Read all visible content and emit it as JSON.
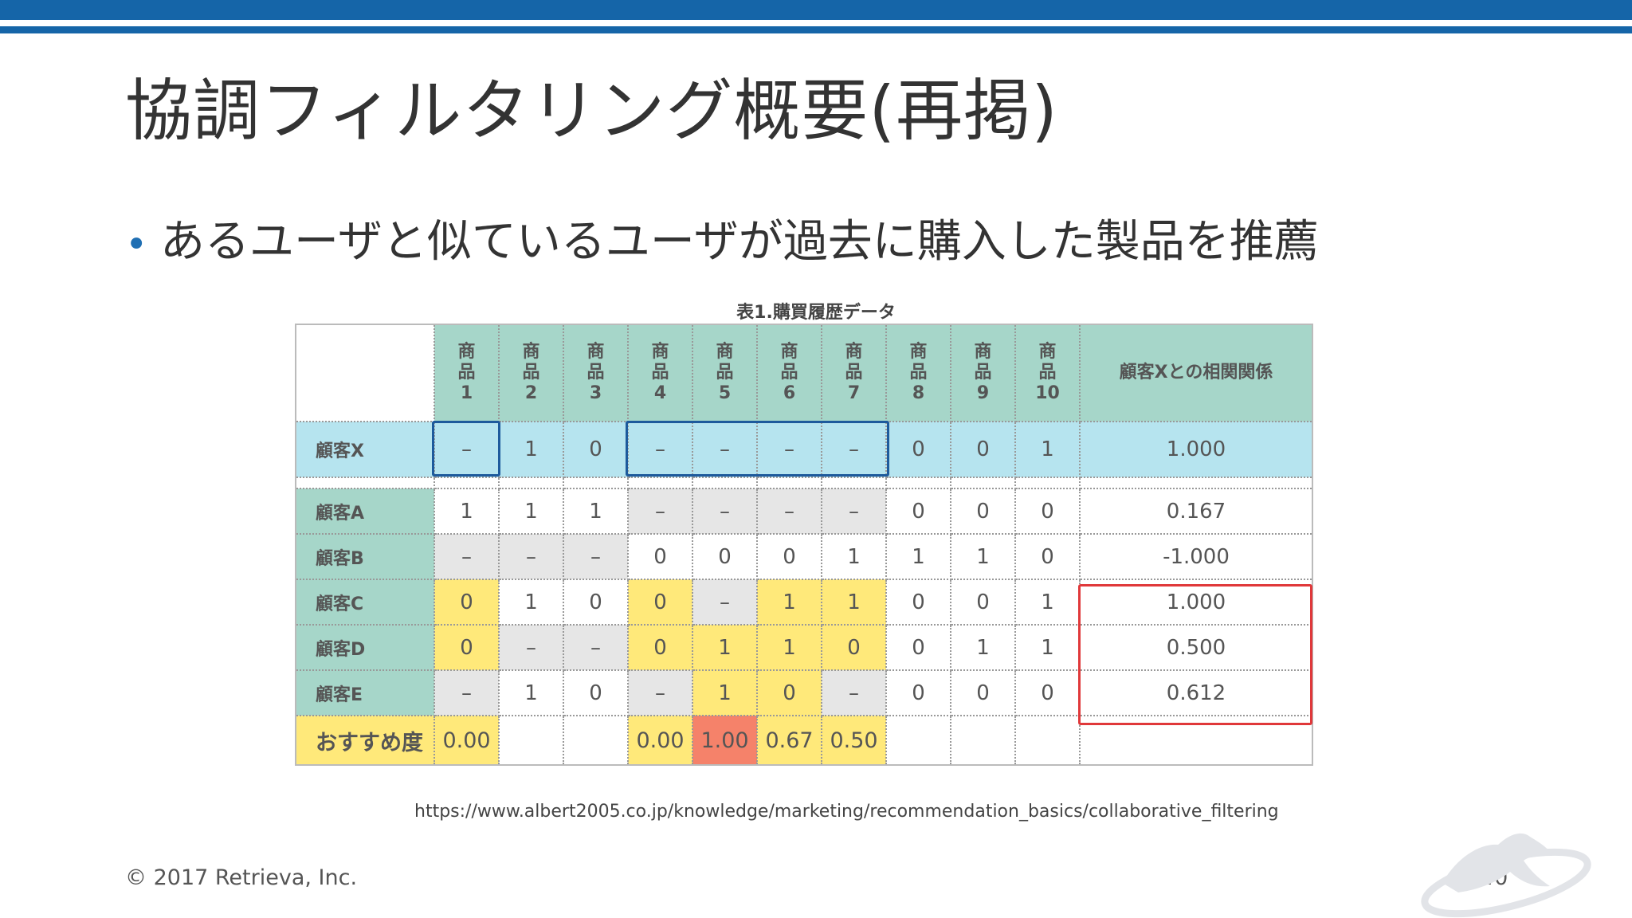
{
  "slide": {
    "title": "協調フィルタリング概要(再掲)",
    "bullet": "あるユーザと似ているユーザが過去に購入した製品を推薦",
    "bullet_marker": "•",
    "caption": "表1.購買履歴データ",
    "source_url": "https://www.albert2005.co.jp/knowledge/marketing/recommendation_basics/collaborative_filtering",
    "copyright": "© 2017 Retrieva, Inc.",
    "page_number": "40",
    "accent_color": "#1565a8"
  },
  "table": {
    "products": [
      [
        "商",
        "品",
        "1"
      ],
      [
        "商",
        "品",
        "2"
      ],
      [
        "商",
        "品",
        "3"
      ],
      [
        "商",
        "品",
        "4"
      ],
      [
        "商",
        "品",
        "5"
      ],
      [
        "商",
        "品",
        "6"
      ],
      [
        "商",
        "品",
        "7"
      ],
      [
        "商",
        "品",
        "8"
      ],
      [
        "商",
        "品",
        "9"
      ],
      [
        "商",
        "品",
        "10"
      ]
    ],
    "correlation_header": "顧客Xとの相関関係",
    "rows": [
      {
        "label": "顧客X",
        "cells": [
          "–",
          "1",
          "0",
          "–",
          "–",
          "–",
          "–",
          "0",
          "0",
          "1"
        ],
        "corr": "1.000"
      },
      {
        "label": "顧客A",
        "cells": [
          "1",
          "1",
          "1",
          "–",
          "–",
          "–",
          "–",
          "0",
          "0",
          "0"
        ],
        "corr": "0.167"
      },
      {
        "label": "顧客B",
        "cells": [
          "–",
          "–",
          "–",
          "0",
          "0",
          "0",
          "1",
          "1",
          "1",
          "0"
        ],
        "corr": "-1.000"
      },
      {
        "label": "顧客C",
        "cells": [
          "0",
          "1",
          "0",
          "0",
          "–",
          "1",
          "1",
          "0",
          "0",
          "1"
        ],
        "corr": "1.000"
      },
      {
        "label": "顧客D",
        "cells": [
          "0",
          "–",
          "–",
          "0",
          "1",
          "1",
          "0",
          "0",
          "1",
          "1"
        ],
        "corr": "0.500"
      },
      {
        "label": "顧客E",
        "cells": [
          "–",
          "1",
          "0",
          "–",
          "1",
          "0",
          "–",
          "0",
          "0",
          "0"
        ],
        "corr": "0.612"
      }
    ],
    "recommend_label": "おすすめ度",
    "recommend": [
      "0.00",
      "",
      "",
      "0.00",
      "1.00",
      "0.67",
      "0.50",
      "",
      "",
      ""
    ]
  }
}
